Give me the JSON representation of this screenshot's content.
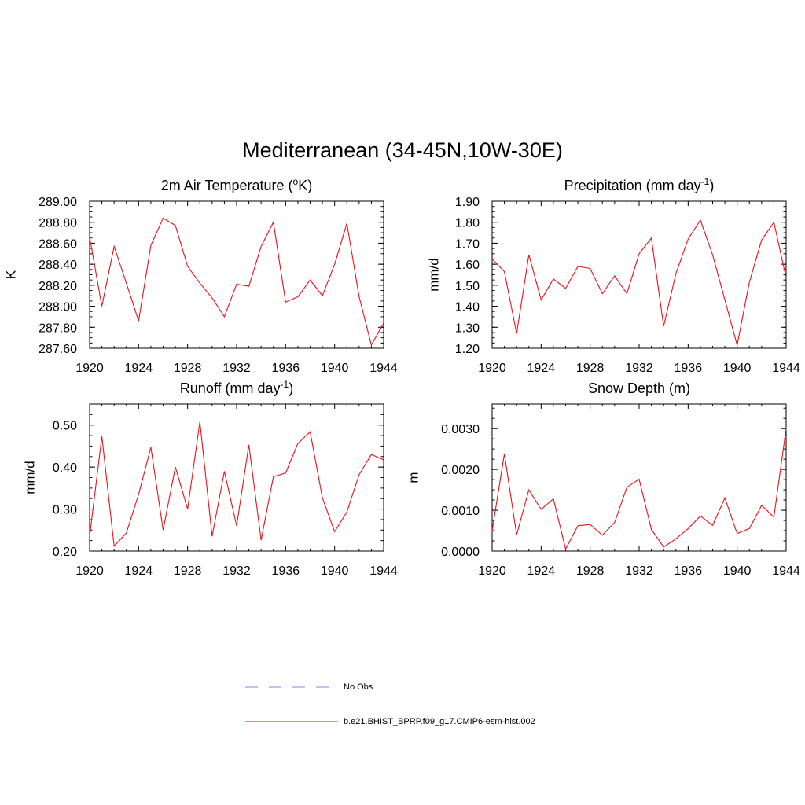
{
  "figure": {
    "title": "Mediterranean (34-45N,10W-30E)",
    "line_color": "#e8111a",
    "obs_color": "#9a9aee"
  },
  "chart_data": [
    {
      "type": "line",
      "title": "2m Air Temperature (°K)",
      "title_parts": [
        "2m Air Temperature (",
        "o",
        "K)"
      ],
      "title_sup_index": 1,
      "xlabel": "",
      "ylabel": "K",
      "xlim": [
        1920,
        1944
      ],
      "ylim": [
        287.6,
        289.0
      ],
      "xticks": [
        1920,
        1924,
        1928,
        1932,
        1936,
        1940,
        1944
      ],
      "xtick_labels": [
        "1920",
        "1924",
        "1928",
        "1932",
        "1936",
        "1940",
        "1944"
      ],
      "yticks": [
        287.6,
        287.8,
        288.0,
        288.2,
        288.4,
        288.6,
        288.8,
        289.0
      ],
      "ytick_labels": [
        "287.60",
        "287.80",
        "288.00",
        "288.20",
        "288.40",
        "288.60",
        "288.80",
        "289.00"
      ],
      "yminor": 0.05,
      "grid": false,
      "series": [
        {
          "x": [
            1920,
            1921,
            1922,
            1923,
            1924,
            1925,
            1926,
            1927,
            1928,
            1929,
            1930,
            1931,
            1932,
            1933,
            1934,
            1935,
            1936,
            1937,
            1938,
            1939,
            1940,
            1941,
            1942,
            1943,
            1944
          ],
          "values": [
            288.66,
            288.0,
            288.57,
            288.22,
            287.86,
            288.58,
            288.84,
            288.77,
            288.38,
            288.22,
            288.08,
            287.9,
            288.21,
            288.19,
            288.57,
            288.8,
            288.04,
            288.09,
            288.25,
            288.1,
            288.4,
            288.79,
            288.09,
            287.63,
            287.84
          ]
        }
      ]
    },
    {
      "type": "line",
      "title": "Precipitation (mm day-1)",
      "title_parts": [
        "Precipitation (mm day",
        "-1",
        ")"
      ],
      "title_sup_index": 1,
      "xlabel": "",
      "ylabel": "mm/d",
      "xlim": [
        1920,
        1944
      ],
      "ylim": [
        1.2,
        1.9
      ],
      "xticks": [
        1920,
        1924,
        1928,
        1932,
        1936,
        1940,
        1944
      ],
      "xtick_labels": [
        "1920",
        "1924",
        "1928",
        "1932",
        "1936",
        "1940",
        "1944"
      ],
      "yticks": [
        1.2,
        1.3,
        1.4,
        1.5,
        1.6,
        1.7,
        1.8,
        1.9
      ],
      "ytick_labels": [
        "1.20",
        "1.30",
        "1.40",
        "1.50",
        "1.60",
        "1.70",
        "1.80",
        "1.90"
      ],
      "yminor": 0.025,
      "grid": false,
      "series": [
        {
          "x": [
            1920,
            1921,
            1922,
            1923,
            1924,
            1925,
            1926,
            1927,
            1928,
            1929,
            1930,
            1931,
            1932,
            1933,
            1934,
            1935,
            1936,
            1937,
            1938,
            1939,
            1940,
            1941,
            1942,
            1943,
            1944
          ],
          "values": [
            1.625,
            1.565,
            1.27,
            1.645,
            1.43,
            1.53,
            1.485,
            1.59,
            1.58,
            1.46,
            1.545,
            1.46,
            1.65,
            1.725,
            1.305,
            1.555,
            1.72,
            1.81,
            1.645,
            1.43,
            1.215,
            1.515,
            1.715,
            1.8,
            1.535
          ]
        }
      ]
    },
    {
      "type": "line",
      "title": "Runoff (mm day-1)",
      "title_parts": [
        "Runoff (mm day",
        "-1",
        ")"
      ],
      "title_sup_index": 1,
      "xlabel": "",
      "ylabel": "mm/d",
      "xlim": [
        1920,
        1944
      ],
      "ylim": [
        0.2,
        0.55
      ],
      "xticks": [
        1920,
        1924,
        1928,
        1932,
        1936,
        1940,
        1944
      ],
      "xtick_labels": [
        "1920",
        "1924",
        "1928",
        "1932",
        "1936",
        "1940",
        "1944"
      ],
      "yticks": [
        0.2,
        0.3,
        0.4,
        0.5
      ],
      "ytick_labels": [
        "0.20",
        "0.30",
        "0.40",
        "0.50"
      ],
      "yminor": 0.025,
      "grid": false,
      "series": [
        {
          "x": [
            1920,
            1921,
            1922,
            1923,
            1924,
            1925,
            1926,
            1927,
            1928,
            1929,
            1930,
            1931,
            1932,
            1933,
            1934,
            1935,
            1936,
            1937,
            1938,
            1939,
            1940,
            1941,
            1942,
            1943,
            1944
          ],
          "values": [
            0.235,
            0.473,
            0.212,
            0.243,
            0.335,
            0.447,
            0.25,
            0.4,
            0.3,
            0.508,
            0.235,
            0.39,
            0.26,
            0.453,
            0.226,
            0.377,
            0.386,
            0.456,
            0.484,
            0.327,
            0.246,
            0.293,
            0.382,
            0.43,
            0.417
          ]
        }
      ]
    },
    {
      "type": "line",
      "title": "Snow Depth (m)",
      "title_parts": [
        "Snow Depth (m)"
      ],
      "title_sup_index": -1,
      "xlabel": "",
      "ylabel": "m",
      "xlim": [
        1920,
        1944
      ],
      "ylim": [
        0.0,
        0.0036
      ],
      "xticks": [
        1920,
        1924,
        1928,
        1932,
        1936,
        1940,
        1944
      ],
      "xtick_labels": [
        "1920",
        "1924",
        "1928",
        "1932",
        "1936",
        "1940",
        "1944"
      ],
      "yticks": [
        0.0,
        0.001,
        0.002,
        0.003
      ],
      "ytick_labels": [
        "0.0000",
        "0.0010",
        "0.0020",
        "0.0030"
      ],
      "yminor": 0.00025,
      "grid": false,
      "series": [
        {
          "x": [
            1920,
            1921,
            1922,
            1923,
            1924,
            1925,
            1926,
            1927,
            1928,
            1929,
            1930,
            1931,
            1932,
            1933,
            1934,
            1935,
            1936,
            1937,
            1938,
            1939,
            1940,
            1941,
            1942,
            1943,
            1944
          ],
          "values": [
            0.0005,
            0.00238,
            0.0004,
            0.0015,
            0.00102,
            0.00128,
            5e-05,
            0.00062,
            0.00065,
            0.00039,
            0.0007,
            0.00156,
            0.00176,
            0.00053,
            0.0001,
            0.0003,
            0.00055,
            0.00086,
            0.00063,
            0.0013,
            0.00043,
            0.00055,
            0.00112,
            0.00083,
            0.003
          ]
        }
      ]
    }
  ],
  "legend": {
    "entries": [
      {
        "label": "No Obs",
        "style": "dashed"
      },
      {
        "label": "b.e21.BHIST_BPRP.f09_g17.CMIP6-esm-hist.002",
        "style": "solid"
      }
    ]
  }
}
